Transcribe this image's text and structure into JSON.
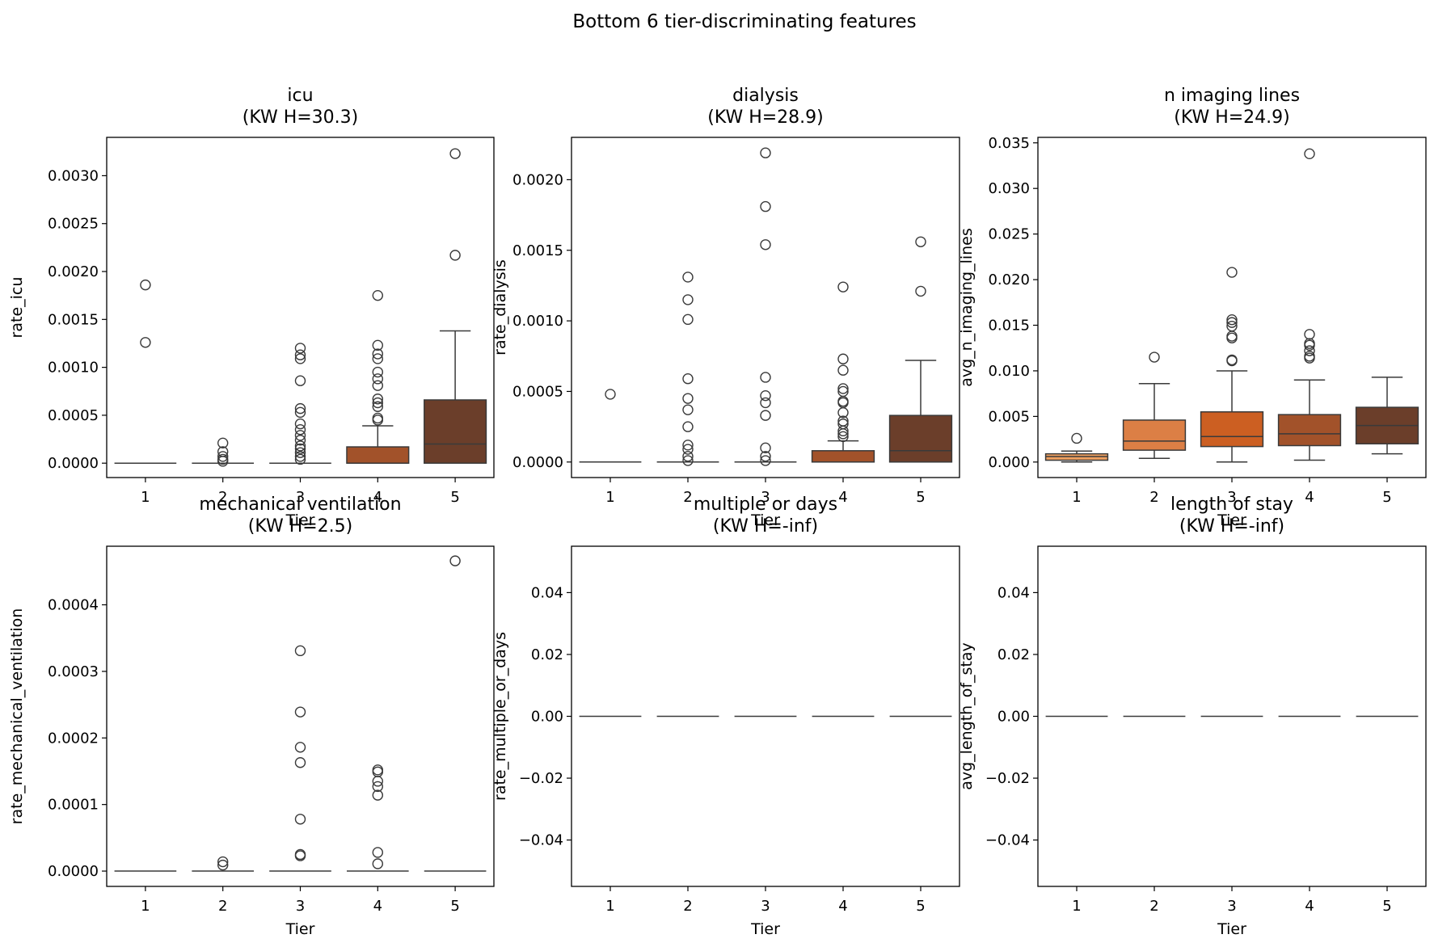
{
  "suptitle": "Bottom 6 tier-discriminating features",
  "colors": {
    "tier1": "#f0a060",
    "tier2": "#dc7f45",
    "tier3": "#cc5f22",
    "tier4": "#a2522a",
    "tier5": "#6b3e2a",
    "line": "#3a3a3a"
  },
  "chart_data": [
    {
      "type": "box",
      "title": "icu\n(KW H=30.3)",
      "xlabel": "Tier",
      "ylabel": "rate_icu",
      "categories": [
        "1",
        "2",
        "3",
        "4",
        "5"
      ],
      "ylim": [
        -0.00015,
        0.0034
      ],
      "yticks": [
        0,
        0.0005,
        0.001,
        0.0015,
        0.002,
        0.0025,
        0.003
      ],
      "ytick_labels": [
        "0.0000",
        "0.0005",
        "0.0010",
        "0.0015",
        "0.0020",
        "0.0025",
        "0.0030"
      ],
      "boxes": [
        {
          "tier": "1",
          "min": 0,
          "q1": 0,
          "median": 0,
          "q3": 0,
          "max": 0,
          "outliers": [
            0.00186,
            0.00126
          ]
        },
        {
          "tier": "2",
          "min": 0,
          "q1": 0,
          "median": 0,
          "q3": 0,
          "max": 0,
          "outliers": [
            0.00021,
            0.00012,
            7e-05,
            4e-05,
            2e-05
          ]
        },
        {
          "tier": "3",
          "min": 0,
          "q1": 0,
          "median": 0,
          "q3": 0,
          "max": 0,
          "outliers": [
            0.0012,
            0.00113,
            0.00109,
            0.00086,
            0.00057,
            0.00053,
            0.00041,
            0.00035,
            0.00029,
            0.00024,
            0.00018,
            0.00015,
            0.00011,
            7e-05,
            4e-05
          ]
        },
        {
          "tier": "4",
          "min": 0,
          "q1": 0,
          "median": 0,
          "q3": 0.00017,
          "max": 0.00039,
          "outliers": [
            0.00175,
            0.00123,
            0.00114,
            0.00109,
            0.00095,
            0.00088,
            0.00081,
            0.00067,
            0.00063,
            0.00059,
            0.00047,
            0.00045
          ]
        },
        {
          "tier": "5",
          "min": 0,
          "q1": 0,
          "median": 0.0002,
          "q3": 0.00066,
          "max": 0.00138,
          "outliers": [
            0.00323,
            0.00217
          ]
        }
      ]
    },
    {
      "type": "box",
      "title": "dialysis\n(KW H=28.9)",
      "xlabel": "Tier",
      "ylabel": "rate_dialysis",
      "categories": [
        "1",
        "2",
        "3",
        "4",
        "5"
      ],
      "ylim": [
        -0.00011,
        0.0023
      ],
      "yticks": [
        0,
        0.0005,
        0.001,
        0.0015,
        0.002
      ],
      "ytick_labels": [
        "0.0000",
        "0.0005",
        "0.0010",
        "0.0015",
        "0.0020"
      ],
      "boxes": [
        {
          "tier": "1",
          "min": 0,
          "q1": 0,
          "median": 0,
          "q3": 0,
          "max": 0,
          "outliers": [
            0.00048
          ]
        },
        {
          "tier": "2",
          "min": 0,
          "q1": 0,
          "median": 0,
          "q3": 0,
          "max": 0,
          "outliers": [
            0.00131,
            0.00115,
            0.00101,
            0.00059,
            0.00045,
            0.00037,
            0.00025,
            0.00012,
            9e-05,
            4e-05,
            1e-05
          ]
        },
        {
          "tier": "3",
          "min": 0,
          "q1": 0,
          "median": 0,
          "q3": 0,
          "max": 0,
          "outliers": [
            0.00219,
            0.00181,
            0.00154,
            0.0006,
            0.00047,
            0.00042,
            0.00033,
            0.0001,
            4e-05,
            1e-05
          ]
        },
        {
          "tier": "4",
          "min": 0,
          "q1": 0,
          "median": 0,
          "q3": 8e-05,
          "max": 0.00015,
          "outliers": [
            0.00124,
            0.00073,
            0.00065,
            0.00052,
            0.0005,
            0.00043,
            0.00042,
            0.00035,
            0.00029,
            0.00027,
            0.00022,
            0.0002,
            0.00018
          ]
        },
        {
          "tier": "5",
          "min": 0,
          "q1": 0,
          "median": 8e-05,
          "q3": 0.00033,
          "max": 0.00072,
          "outliers": [
            0.00156,
            0.00121
          ]
        }
      ]
    },
    {
      "type": "box",
      "title": "n imaging lines\n(KW H=24.9)",
      "xlabel": "Tier",
      "ylabel": "avg_n_imaging_lines",
      "categories": [
        "1",
        "2",
        "3",
        "4",
        "5"
      ],
      "ylim": [
        -0.0017,
        0.0356
      ],
      "yticks": [
        0,
        0.005,
        0.01,
        0.015,
        0.02,
        0.025,
        0.03,
        0.035
      ],
      "ytick_labels": [
        "0.000",
        "0.005",
        "0.010",
        "0.015",
        "0.020",
        "0.025",
        "0.030",
        "0.035"
      ],
      "boxes": [
        {
          "tier": "1",
          "min": 0,
          "q1": 0.0002,
          "median": 0.0006,
          "q3": 0.0009,
          "max": 0.0012,
          "outliers": [
            0.0026
          ]
        },
        {
          "tier": "2",
          "min": 0.0004,
          "q1": 0.0013,
          "median": 0.0023,
          "q3": 0.0046,
          "max": 0.0086,
          "outliers": [
            0.0115
          ]
        },
        {
          "tier": "3",
          "min": 0,
          "q1": 0.0017,
          "median": 0.0028,
          "q3": 0.0055,
          "max": 0.01,
          "outliers": [
            0.0208,
            0.0156,
            0.0153,
            0.0149,
            0.0138,
            0.0136,
            0.0112,
            0.0111
          ]
        },
        {
          "tier": "4",
          "min": 0.0002,
          "q1": 0.0018,
          "median": 0.0031,
          "q3": 0.0052,
          "max": 0.009,
          "outliers": [
            0.0338,
            0.014,
            0.013,
            0.0128,
            0.0122,
            0.0116,
            0.0114
          ]
        },
        {
          "tier": "5",
          "min": 0.0009,
          "q1": 0.002,
          "median": 0.004,
          "q3": 0.006,
          "max": 0.0093,
          "outliers": []
        }
      ]
    },
    {
      "type": "box",
      "title": "mechanical ventilation\n(KW H=2.5)",
      "xlabel": "Tier",
      "ylabel": "rate_mechanical_ventilation",
      "categories": [
        "1",
        "2",
        "3",
        "4",
        "5"
      ],
      "ylim": [
        -2.3e-05,
        0.000488
      ],
      "yticks": [
        0,
        0.0001,
        0.0002,
        0.0003,
        0.0004
      ],
      "ytick_labels": [
        "0.0000",
        "0.0001",
        "0.0002",
        "0.0003",
        "0.0004"
      ],
      "boxes": [
        {
          "tier": "1",
          "min": 0,
          "q1": 0,
          "median": 0,
          "q3": 0,
          "max": 0,
          "outliers": []
        },
        {
          "tier": "2",
          "min": 0,
          "q1": 0,
          "median": 0,
          "q3": 0,
          "max": 0,
          "outliers": [
            1.4e-05,
            9e-06
          ]
        },
        {
          "tier": "3",
          "min": 0,
          "q1": 0,
          "median": 0,
          "q3": 0,
          "max": 0,
          "outliers": [
            0.000331,
            0.000239,
            0.000186,
            0.000163,
            7.8e-05,
            2.5e-05,
            2.3e-05
          ]
        },
        {
          "tier": "4",
          "min": 0,
          "q1": 0,
          "median": 0,
          "q3": 0,
          "max": 0,
          "outliers": [
            0.000152,
            0.000149,
            0.000135,
            0.000127,
            0.000114,
            2.8e-05,
            1.1e-05
          ]
        },
        {
          "tier": "5",
          "min": 0,
          "q1": 0,
          "median": 0,
          "q3": 0,
          "max": 0,
          "outliers": [
            0.000466
          ]
        }
      ]
    },
    {
      "type": "box",
      "title": "multiple or days\n(KW H=-inf)",
      "xlabel": "Tier",
      "ylabel": "rate_multiple_or_days",
      "categories": [
        "1",
        "2",
        "3",
        "4",
        "5"
      ],
      "ylim": [
        -0.055,
        0.055
      ],
      "yticks": [
        -0.04,
        -0.02,
        0,
        0.02,
        0.04
      ],
      "ytick_labels": [
        "−0.04",
        "−0.02",
        "0.00",
        "0.02",
        "0.04"
      ],
      "boxes": [
        {
          "tier": "1",
          "min": 0,
          "q1": 0,
          "median": 0,
          "q3": 0,
          "max": 0,
          "outliers": []
        },
        {
          "tier": "2",
          "min": 0,
          "q1": 0,
          "median": 0,
          "q3": 0,
          "max": 0,
          "outliers": []
        },
        {
          "tier": "3",
          "min": 0,
          "q1": 0,
          "median": 0,
          "q3": 0,
          "max": 0,
          "outliers": []
        },
        {
          "tier": "4",
          "min": 0,
          "q1": 0,
          "median": 0,
          "q3": 0,
          "max": 0,
          "outliers": []
        },
        {
          "tier": "5",
          "min": 0,
          "q1": 0,
          "median": 0,
          "q3": 0,
          "max": 0,
          "outliers": []
        }
      ]
    },
    {
      "type": "box",
      "title": "length of stay\n(KW H=-inf)",
      "xlabel": "Tier",
      "ylabel": "avg_length_of_stay",
      "categories": [
        "1",
        "2",
        "3",
        "4",
        "5"
      ],
      "ylim": [
        -0.055,
        0.055
      ],
      "yticks": [
        -0.04,
        -0.02,
        0,
        0.02,
        0.04
      ],
      "ytick_labels": [
        "−0.04",
        "−0.02",
        "0.00",
        "0.02",
        "0.04"
      ],
      "boxes": [
        {
          "tier": "1",
          "min": 0,
          "q1": 0,
          "median": 0,
          "q3": 0,
          "max": 0,
          "outliers": []
        },
        {
          "tier": "2",
          "min": 0,
          "q1": 0,
          "median": 0,
          "q3": 0,
          "max": 0,
          "outliers": []
        },
        {
          "tier": "3",
          "min": 0,
          "q1": 0,
          "median": 0,
          "q3": 0,
          "max": 0,
          "outliers": []
        },
        {
          "tier": "4",
          "min": 0,
          "q1": 0,
          "median": 0,
          "q3": 0,
          "max": 0,
          "outliers": []
        },
        {
          "tier": "5",
          "min": 0,
          "q1": 0,
          "median": 0,
          "q3": 0,
          "max": 0,
          "outliers": []
        }
      ]
    }
  ]
}
